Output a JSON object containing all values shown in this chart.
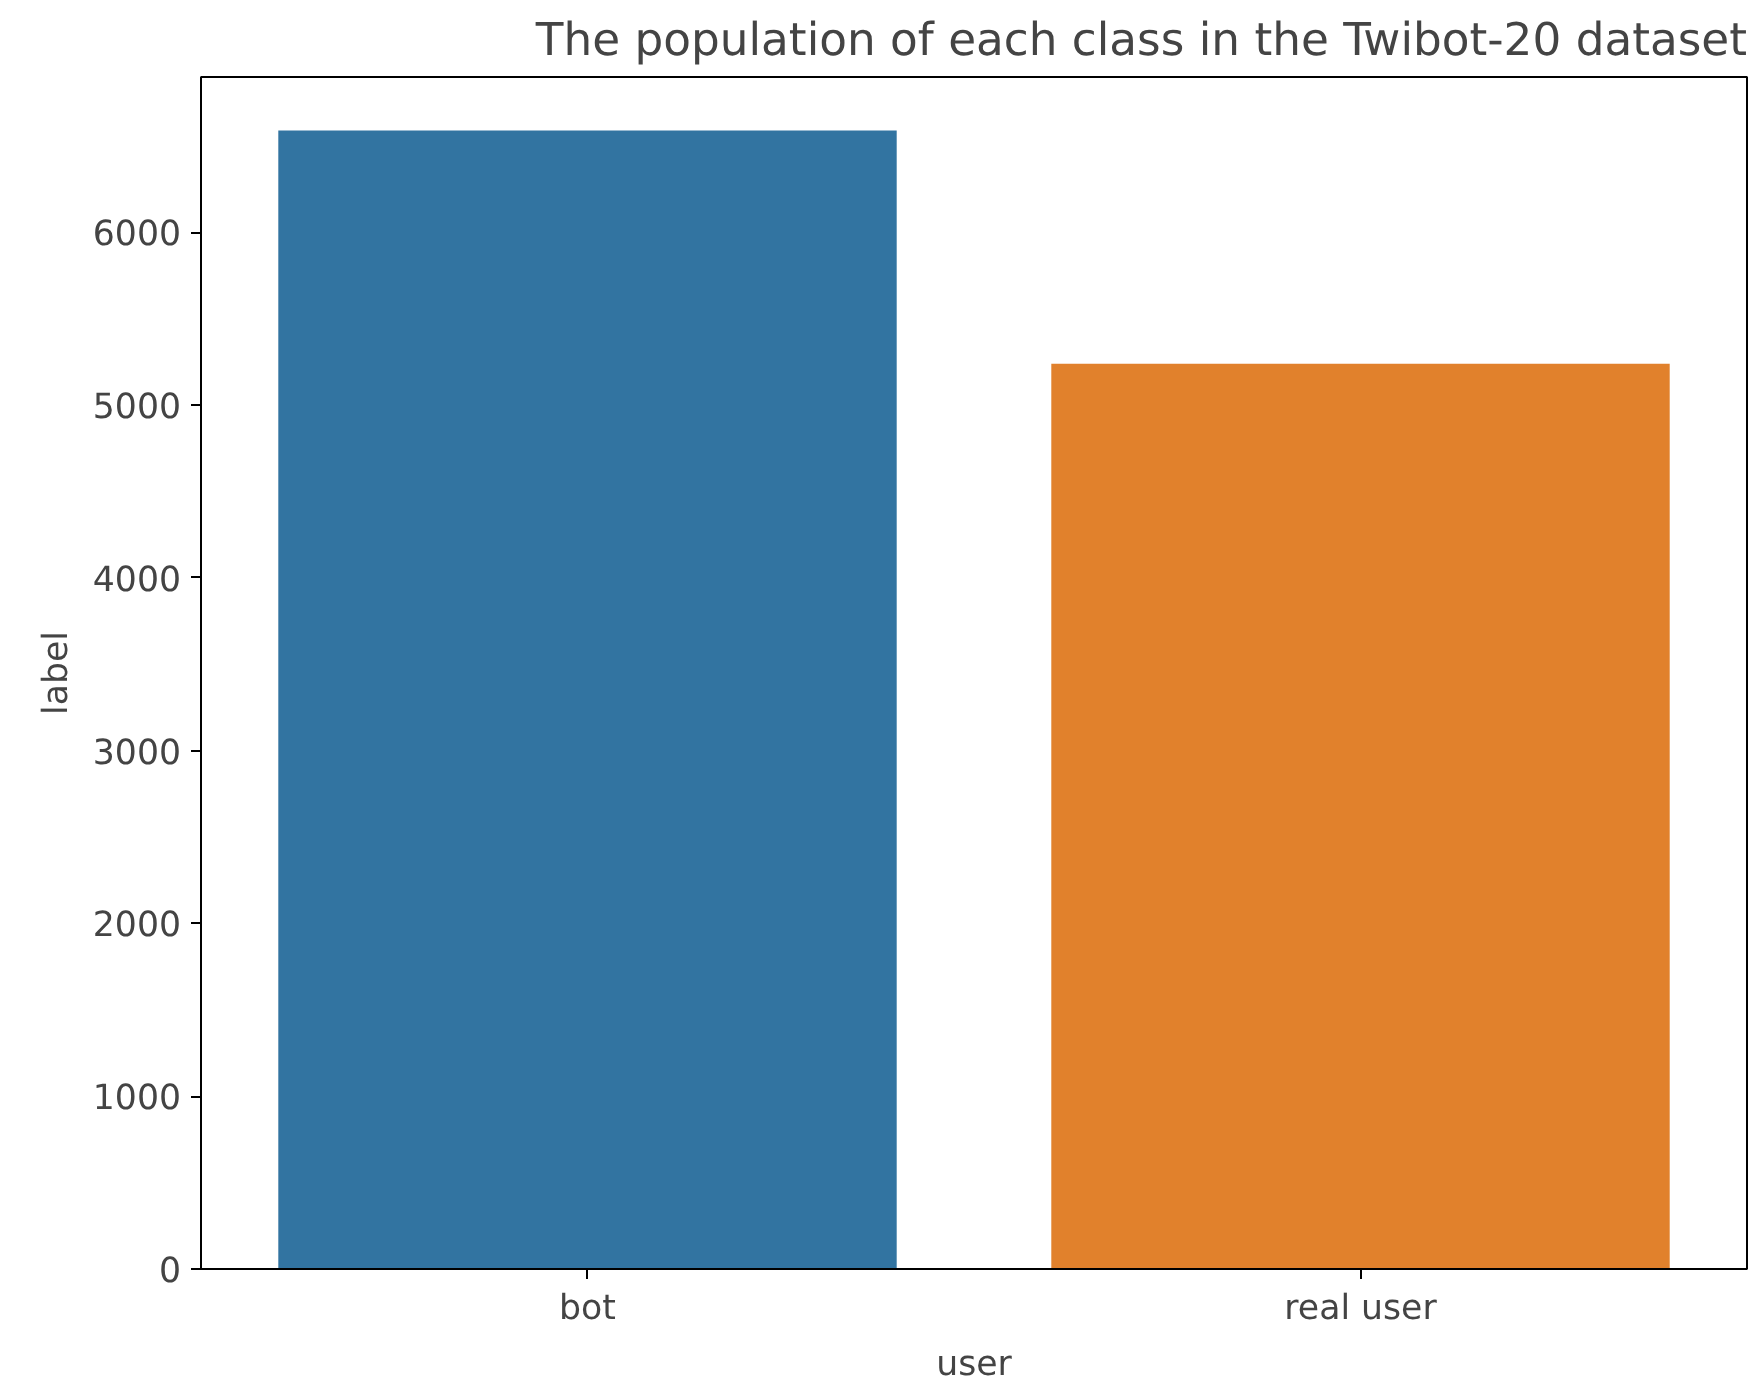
{
  "chart_data": {
    "type": "bar",
    "title": "The population of each class in the Twibot-20 dataset",
    "xlabel": "user",
    "ylabel": "label",
    "categories": [
      "bot",
      "real user"
    ],
    "values": [
      6590,
      5240
    ],
    "colors": [
      "#3274a1",
      "#e1812c"
    ],
    "ylim": [
      0,
      6900
    ],
    "yticks": [
      0,
      1000,
      2000,
      3000,
      4000,
      5000,
      6000
    ],
    "grid": false
  }
}
